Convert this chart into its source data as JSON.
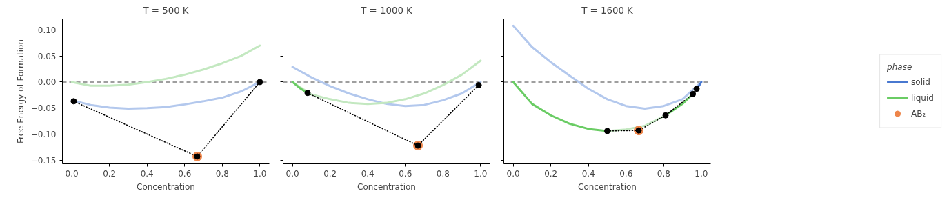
{
  "chart_data": [
    {
      "type": "line",
      "title": "T = 500 K",
      "xlabel": "Concentration",
      "ylabel": "Free Energy of Formation",
      "xlim": [
        -0.05,
        1.05
      ],
      "ylim": [
        -0.157,
        0.121
      ],
      "xticks": [
        {
          "value": 0,
          "label": "0.0"
        },
        {
          "value": 0.2,
          "label": "0.2"
        },
        {
          "value": 0.4,
          "label": "0.4"
        },
        {
          "value": 0.6,
          "label": "0.6"
        },
        {
          "value": 0.8,
          "label": "0.8"
        },
        {
          "value": 1,
          "label": "1.0"
        }
      ],
      "yticks": [
        {
          "value": -0.15,
          "label": "−0.15"
        },
        {
          "value": -0.1,
          "label": "−0.10"
        },
        {
          "value": -0.05,
          "label": "−0.05"
        },
        {
          "value": 0,
          "label": "0.00"
        },
        {
          "value": 0.05,
          "label": "0.05"
        },
        {
          "value": 0.1,
          "label": "0.10"
        }
      ],
      "ref_lines": [
        {
          "axis": "y",
          "value": 0,
          "color": "#808080",
          "line_style": "dashed"
        }
      ],
      "series": [
        {
          "type": "line",
          "color": "#c3e8c0",
          "x": [
            0,
            0.1,
            0.2,
            0.3,
            0.4,
            0.5,
            0.6,
            0.7,
            0.8,
            0.9,
            1.0
          ],
          "values": [
            0.0,
            -0.007,
            -0.007,
            -0.005,
            0.0,
            0.006,
            0.014,
            0.024,
            0.036,
            0.05,
            0.07
          ]
        },
        {
          "type": "line",
          "color": "#b3c8ed",
          "x": [
            0,
            0.1,
            0.2,
            0.3,
            0.4,
            0.5,
            0.6,
            0.7,
            0.8,
            0.9,
            1.0
          ],
          "values": [
            -0.035,
            -0.044,
            -0.049,
            -0.051,
            -0.05,
            -0.048,
            -0.043,
            -0.037,
            -0.03,
            -0.018,
            0.0
          ]
        },
        {
          "type": "scatter",
          "color": "#ee854a",
          "x": [
            0.667
          ],
          "values": [
            -0.143
          ]
        },
        {
          "type": "line",
          "color": "#000000",
          "line_style": "dotted",
          "marker": "circle",
          "x": [
            0.01,
            0.667,
            1.0
          ],
          "values": [
            -0.037,
            -0.143,
            0.0
          ]
        }
      ]
    },
    {
      "type": "line",
      "title": "T = 1000 K",
      "xlabel": "Concentration",
      "tick_labels": "x",
      "xlim": [
        -0.05,
        1.05
      ],
      "ylim": [
        -0.157,
        0.121
      ],
      "xticks": [
        {
          "value": 0,
          "label": "0.0"
        },
        {
          "value": 0.2,
          "label": "0.2"
        },
        {
          "value": 0.4,
          "label": "0.4"
        },
        {
          "value": 0.6,
          "label": "0.6"
        },
        {
          "value": 0.8,
          "label": "0.8"
        },
        {
          "value": 1,
          "label": "1.0"
        }
      ],
      "yticks": [
        {
          "value": -0.15,
          "label": null
        },
        {
          "value": -0.1,
          "label": null
        },
        {
          "value": -0.05,
          "label": null
        },
        {
          "value": 0,
          "label": null
        },
        {
          "value": 0.05,
          "label": null
        },
        {
          "value": 0.1,
          "label": null
        }
      ],
      "ref_lines": [
        {
          "axis": "y",
          "value": 0,
          "color": "#808080",
          "line_style": "dashed"
        }
      ],
      "series": [
        {
          "type": "line",
          "color": "#b3c8ed",
          "x": [
            0,
            0.1,
            0.2,
            0.3,
            0.4,
            0.5,
            0.6,
            0.7,
            0.8,
            0.9,
            1.0
          ],
          "values": [
            0.029,
            0.009,
            -0.008,
            -0.022,
            -0.033,
            -0.042,
            -0.046,
            -0.044,
            -0.035,
            -0.022,
            0.0
          ]
        },
        {
          "type": "line",
          "color": "#c3e8c0",
          "x": [
            0,
            0.1,
            0.2,
            0.3,
            0.4,
            0.5,
            0.6,
            0.7,
            0.8,
            0.9,
            1.0
          ],
          "values": [
            0.0,
            -0.024,
            -0.033,
            -0.04,
            -0.042,
            -0.04,
            -0.033,
            -0.022,
            -0.006,
            0.014,
            0.041
          ]
        },
        {
          "type": "line",
          "color": "#6acc64",
          "x": [
            0,
            0.04,
            0.08
          ],
          "values": [
            0.0,
            -0.012,
            -0.021
          ]
        },
        {
          "type": "scatter",
          "color": "#ee854a",
          "x": [
            0.667
          ],
          "values": [
            -0.122
          ]
        },
        {
          "type": "line",
          "color": "#000000",
          "line_style": "dotted",
          "marker": "circle",
          "x": [
            0.08,
            0.667,
            0.99
          ],
          "values": [
            -0.021,
            -0.122,
            -0.006
          ]
        }
      ]
    },
    {
      "type": "line",
      "title": "T = 1600 K",
      "xlabel": "Concentration",
      "tick_labels": "x",
      "legend": "right",
      "legend_title": "phase",
      "xlim": [
        -0.05,
        1.05
      ],
      "ylim": [
        -0.157,
        0.121
      ],
      "xticks": [
        {
          "value": 0,
          "label": "0.0"
        },
        {
          "value": 0.2,
          "label": "0.2"
        },
        {
          "value": 0.4,
          "label": "0.4"
        },
        {
          "value": 0.6,
          "label": "0.6"
        },
        {
          "value": 0.8,
          "label": "0.8"
        },
        {
          "value": 1,
          "label": "1.0"
        }
      ],
      "yticks": [
        {
          "value": -0.15,
          "label": null
        },
        {
          "value": -0.1,
          "label": null
        },
        {
          "value": -0.05,
          "label": null
        },
        {
          "value": 0,
          "label": null
        },
        {
          "value": 0.05,
          "label": null
        },
        {
          "value": 0.1,
          "label": null
        }
      ],
      "ref_lines": [
        {
          "axis": "y",
          "value": 0,
          "color": "#808080",
          "line_style": "dashed"
        }
      ],
      "series": [
        {
          "type": "line",
          "color": "#b3c8ed",
          "x": [
            0,
            0.1,
            0.2,
            0.3,
            0.4,
            0.5,
            0.6,
            0.7,
            0.8,
            0.9,
            1.0
          ],
          "values": [
            0.108,
            0.067,
            0.038,
            0.012,
            -0.013,
            -0.033,
            -0.046,
            -0.051,
            -0.046,
            -0.033,
            0.0
          ]
        },
        {
          "type": "line",
          "color": "#c3e8c0",
          "x": [
            0.5,
            0.6,
            0.7,
            0.81
          ],
          "values": [
            -0.094,
            -0.091,
            -0.084,
            -0.064
          ]
        },
        {
          "name": "solid",
          "type": "line",
          "color": "#4878d0",
          "x": [
            0.975,
            0.99,
            1.0
          ],
          "values": [
            -0.013,
            -0.006,
            0.0
          ]
        },
        {
          "name": "liquid",
          "type": "line",
          "color": "#6acc64",
          "x": [
            0,
            0.1,
            0.2,
            0.3,
            0.4,
            0.5,
            0.6,
            0.81,
            0.9,
            0.955
          ],
          "values": [
            0.0,
            -0.042,
            -0.064,
            -0.08,
            -0.09,
            -0.094,
            null,
            -0.064,
            -0.042,
            -0.023
          ]
        },
        {
          "name": "AB₂",
          "type": "scatter",
          "color": "#ee854a",
          "x": [
            0.667
          ],
          "values": [
            -0.093
          ]
        },
        {
          "type": "line",
          "color": "#000000",
          "line_style": "dotted",
          "marker": "circle",
          "x": [
            0.5,
            0.667,
            0.81,
            0.955,
            0.975
          ],
          "values": [
            -0.094,
            -0.093,
            -0.064,
            -0.023,
            -0.013
          ]
        }
      ]
    }
  ]
}
